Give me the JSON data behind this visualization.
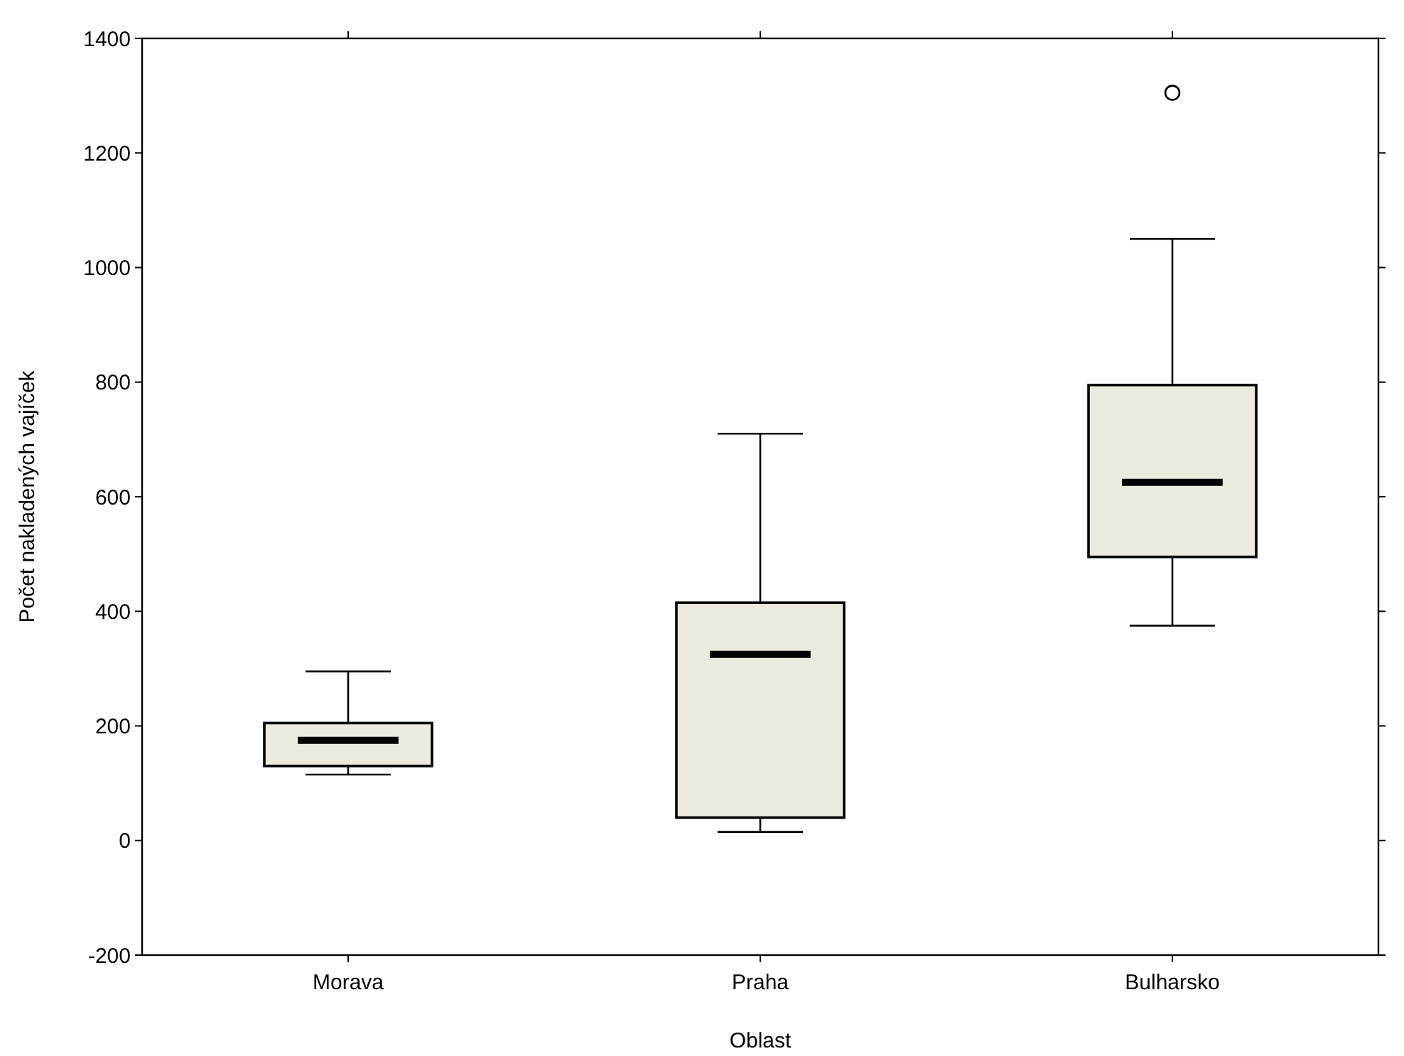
{
  "chart_data": {
    "type": "box",
    "xlabel": "Oblast",
    "ylabel": "Počet nakladených vajíček",
    "categories": [
      "Morava",
      "Praha",
      "Bulharsko"
    ],
    "boxes": [
      {
        "low": 115,
        "q1": 130,
        "median": 175,
        "q3": 205,
        "high": 295
      },
      {
        "low": 15,
        "q1": 40,
        "median": 325,
        "q3": 415,
        "high": 710
      },
      {
        "low": 375,
        "q1": 495,
        "median": 625,
        "q3": 795,
        "high": 1050,
        "outliers": [
          1305
        ]
      }
    ],
    "color": "#ece9df",
    "ylim": [
      -200,
      1400
    ],
    "yticks": [
      -200,
      0,
      200,
      400,
      600,
      800,
      1000,
      1200,
      1400
    ],
    "grid": false
  }
}
